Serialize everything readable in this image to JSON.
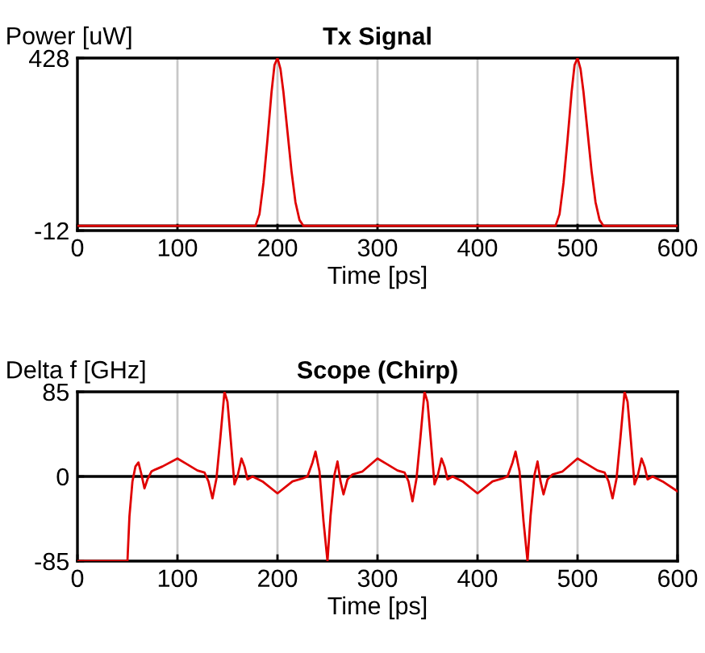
{
  "chart_data": [
    {
      "type": "line",
      "title": "Tx Signal",
      "xlabel": "Time [ps]",
      "ylabel": "Power [uW]",
      "xlim": [
        0,
        600
      ],
      "xticks": [
        0,
        100,
        200,
        300,
        400,
        500,
        600
      ],
      "ylim": [
        -12,
        428
      ],
      "yticks": [
        -12,
        428
      ],
      "grid": "x",
      "ref_lines": [
        {
          "axis": "y",
          "value": 0,
          "color": "#000000"
        }
      ],
      "series": [
        {
          "color": "#e00000",
          "x": [
            0,
            178,
            182,
            186,
            190,
            194,
            197,
            200,
            203,
            206,
            210,
            214,
            218,
            222,
            226,
            478,
            482,
            486,
            490,
            494,
            497,
            500,
            503,
            506,
            510,
            514,
            518,
            522,
            526,
            600
          ],
          "values": [
            0,
            0,
            30,
            110,
            220,
            340,
            410,
            428,
            400,
            340,
            240,
            140,
            60,
            15,
            0,
            0,
            30,
            110,
            220,
            340,
            410,
            428,
            400,
            340,
            240,
            140,
            60,
            15,
            0,
            0
          ]
        }
      ]
    },
    {
      "type": "line",
      "title": "Scope (Chirp)",
      "xlabel": "Time [ps]",
      "ylabel": "Delta f [GHz]",
      "xlim": [
        0,
        600
      ],
      "xticks": [
        0,
        100,
        200,
        300,
        400,
        500,
        600
      ],
      "ylim": [
        -85,
        85
      ],
      "yticks": [
        -85,
        0,
        85
      ],
      "grid": "x",
      "ref_lines": [
        {
          "axis": "y",
          "value": 0,
          "color": "#000000"
        }
      ],
      "series": [
        {
          "color": "#e00000",
          "x": [
            0,
            50,
            52,
            55,
            58,
            61,
            64,
            67,
            70,
            74,
            78,
            85,
            100,
            110,
            120,
            127,
            131,
            135,
            139,
            143,
            147,
            150,
            153,
            157,
            160,
            164,
            167,
            170,
            175,
            185,
            200,
            215,
            225,
            230,
            235,
            238,
            242,
            246,
            250,
            253,
            257,
            260,
            263,
            266,
            270,
            275,
            285,
            300,
            310,
            320,
            327,
            331,
            335,
            339,
            343,
            347,
            350,
            353,
            357,
            360,
            364,
            367,
            370,
            375,
            385,
            400,
            415,
            425,
            430,
            435,
            438,
            442,
            446,
            450,
            453,
            457,
            460,
            463,
            466,
            470,
            475,
            485,
            500,
            510,
            520,
            527,
            531,
            535,
            539,
            543,
            547,
            550,
            553,
            557,
            560,
            564,
            567,
            570,
            575,
            585,
            600
          ],
          "values": [
            -85,
            -85,
            -40,
            -5,
            10,
            14,
            2,
            -12,
            -3,
            5,
            7,
            10,
            18,
            12,
            6,
            4,
            -5,
            -22,
            -2,
            40,
            85,
            75,
            40,
            -8,
            0,
            18,
            10,
            -3,
            0,
            -5,
            -17,
            -5,
            -2,
            0,
            14,
            25,
            5,
            -45,
            -85,
            -40,
            2,
            15,
            -5,
            -18,
            -3,
            2,
            5,
            18,
            12,
            6,
            4,
            -5,
            -25,
            -2,
            40,
            85,
            75,
            40,
            -8,
            0,
            18,
            10,
            -3,
            0,
            -5,
            -17,
            -5,
            -2,
            0,
            14,
            25,
            5,
            -45,
            -85,
            -40,
            2,
            15,
            -5,
            -18,
            -3,
            2,
            5,
            18,
            12,
            6,
            4,
            -5,
            -22,
            -2,
            40,
            85,
            75,
            40,
            -8,
            0,
            18,
            10,
            -3,
            0,
            -5,
            -15
          ]
        }
      ]
    }
  ]
}
